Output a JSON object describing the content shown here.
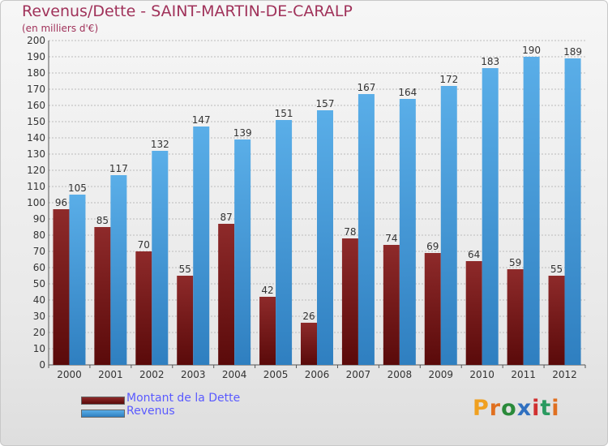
{
  "header": {
    "title": "Revenus/Dette - SAINT-MARTIN-DE-CARALP",
    "subtitle": "(en milliers d'€)"
  },
  "brand": {
    "logo_text": "Proxiti"
  },
  "colors": {
    "debt_light": "#8e2a2a",
    "debt_dark": "#5a0a0a",
    "revenue_light": "#5aaee8",
    "revenue_dark": "#2f7fc0",
    "grid": "#bbbbbb",
    "axis_text": "#333333"
  },
  "chart_data": {
    "type": "bar",
    "categories": [
      "2000",
      "2001",
      "2002",
      "2003",
      "2004",
      "2005",
      "2006",
      "2007",
      "2008",
      "2009",
      "2010",
      "2011",
      "2012"
    ],
    "series": [
      {
        "name": "Montant de la Dette",
        "values": [
          96,
          85,
          70,
          55,
          87,
          42,
          26,
          78,
          74,
          69,
          64,
          59,
          55
        ]
      },
      {
        "name": "Revenus",
        "values": [
          105,
          117,
          132,
          147,
          139,
          151,
          157,
          167,
          164,
          172,
          183,
          190,
          189
        ]
      }
    ],
    "ylim": [
      0,
      200
    ],
    "ytick_step": 10,
    "grid": true,
    "data_labels": true,
    "legend_position": "bottom-left"
  }
}
